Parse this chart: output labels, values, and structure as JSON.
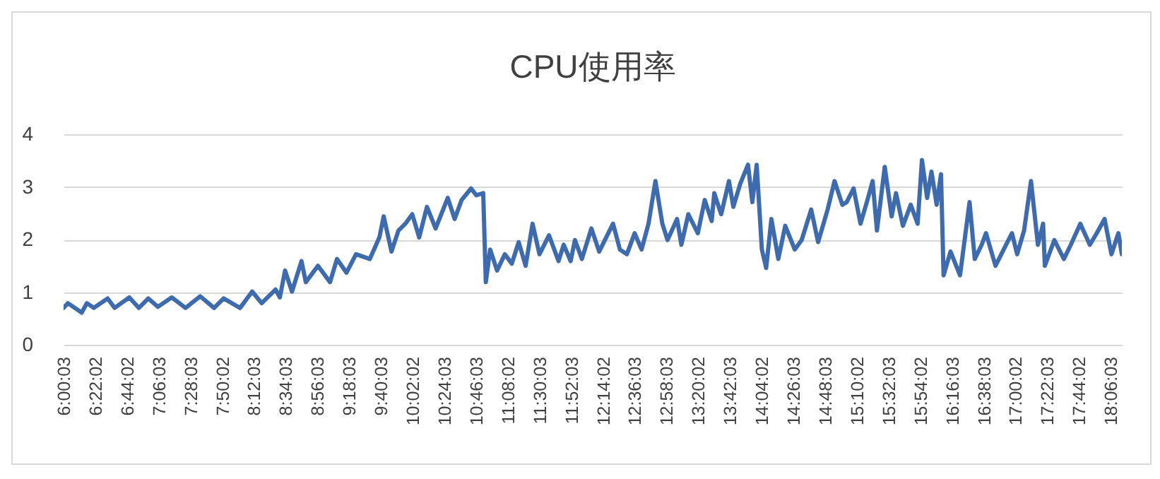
{
  "chart_data": {
    "type": "line",
    "title": "CPU使用率",
    "x": [
      6.0008,
      6.05,
      6.13,
      6.21,
      6.27,
      6.35,
      6.51,
      6.59,
      6.76,
      6.87,
      6.98,
      7.09,
      7.25,
      7.41,
      7.58,
      7.74,
      7.85,
      8.04,
      8.18,
      8.29,
      8.45,
      8.5,
      8.56,
      8.64,
      8.75,
      8.8,
      8.94,
      9.08,
      9.16,
      9.27,
      9.38,
      9.54,
      9.65,
      9.7,
      9.79,
      9.87,
      9.95,
      10.03,
      10.11,
      10.2,
      10.3,
      10.44,
      10.52,
      10.6,
      10.71,
      10.77,
      10.85,
      10.88,
      10.93,
      11.01,
      11.1,
      11.18,
      11.26,
      11.34,
      11.42,
      11.5,
      11.61,
      11.72,
      11.78,
      11.86,
      11.91,
      11.99,
      12.1,
      12.19,
      12.35,
      12.43,
      12.51,
      12.6,
      12.68,
      12.76,
      12.84,
      12.92,
      12.98,
      13.09,
      13.14,
      13.22,
      13.33,
      13.41,
      13.49,
      13.52,
      13.6,
      13.69,
      13.74,
      13.82,
      13.91,
      13.96,
      14.01,
      14.07,
      14.12,
      14.18,
      14.26,
      14.34,
      14.45,
      14.53,
      14.64,
      14.72,
      14.83,
      14.91,
      15.0,
      15.05,
      15.13,
      15.21,
      15.29,
      15.35,
      15.4,
      15.49,
      15.57,
      15.62,
      15.7,
      15.79,
      15.87,
      15.92,
      15.98,
      16.03,
      16.09,
      16.14,
      16.17,
      16.25,
      16.36,
      16.47,
      16.53,
      16.61,
      16.66,
      16.77,
      16.88,
      16.96,
      17.02,
      17.1,
      17.18,
      17.26,
      17.32,
      17.34,
      17.45,
      17.56,
      17.64,
      17.75,
      17.86,
      17.94,
      18.03,
      18.11,
      18.19,
      18.23
    ],
    "series": [
      {
        "color": "#3e6aae",
        "values": [
          0.7,
          0.79,
          0.7,
          0.61,
          0.79,
          0.7,
          0.88,
          0.7,
          0.9,
          0.7,
          0.88,
          0.72,
          0.9,
          0.7,
          0.92,
          0.7,
          0.88,
          0.7,
          1.01,
          0.79,
          1.05,
          0.9,
          1.41,
          1.01,
          1.59,
          1.19,
          1.5,
          1.19,
          1.63,
          1.37,
          1.72,
          1.63,
          2.04,
          2.44,
          1.77,
          2.17,
          2.3,
          2.48,
          2.04,
          2.62,
          2.21,
          2.79,
          2.39,
          2.75,
          2.97,
          2.84,
          2.88,
          1.19,
          1.81,
          1.41,
          1.72,
          1.54,
          1.95,
          1.5,
          2.3,
          1.72,
          2.08,
          1.59,
          1.9,
          1.59,
          1.99,
          1.63,
          2.21,
          1.77,
          2.3,
          1.81,
          1.72,
          2.12,
          1.81,
          2.3,
          3.11,
          2.3,
          1.99,
          2.39,
          1.9,
          2.48,
          2.12,
          2.75,
          2.35,
          2.88,
          2.48,
          3.11,
          2.62,
          3.06,
          3.42,
          2.71,
          3.42,
          1.81,
          1.46,
          2.39,
          1.63,
          2.26,
          1.81,
          1.99,
          2.57,
          1.95,
          2.57,
          3.11,
          2.66,
          2.71,
          2.97,
          2.3,
          2.75,
          3.11,
          2.17,
          3.38,
          2.44,
          2.88,
          2.26,
          2.66,
          2.3,
          3.51,
          2.79,
          3.29,
          2.66,
          3.24,
          1.32,
          1.77,
          1.32,
          2.71,
          1.63,
          1.9,
          2.12,
          1.5,
          1.86,
          2.12,
          1.72,
          2.17,
          3.11,
          1.9,
          2.3,
          1.5,
          1.99,
          1.63,
          1.9,
          2.3,
          1.9,
          2.12,
          2.39,
          1.72,
          2.12,
          1.72
        ]
      }
    ],
    "xlim": [
      6.0008,
      18.23
    ],
    "xticks": [
      {
        "value": 6.0008,
        "label": "6:00:03"
      },
      {
        "value": 6.3672,
        "label": "6:22:02"
      },
      {
        "value": 6.7339,
        "label": "6:44:02"
      },
      {
        "value": 7.1008,
        "label": "7:06:03"
      },
      {
        "value": 7.4675,
        "label": "7:28:03"
      },
      {
        "value": 7.8339,
        "label": "7:50:02"
      },
      {
        "value": 8.2008,
        "label": "8:12:03"
      },
      {
        "value": 8.5675,
        "label": "8:34:03"
      },
      {
        "value": 8.9342,
        "label": "8:56:03"
      },
      {
        "value": 9.3008,
        "label": "9:18:03"
      },
      {
        "value": 9.6675,
        "label": "9:40:03"
      },
      {
        "value": 10.0339,
        "label": "10:02:02"
      },
      {
        "value": 10.4008,
        "label": "10:24:03"
      },
      {
        "value": 10.7675,
        "label": "10:46:03"
      },
      {
        "value": 11.1339,
        "label": "11:08:02"
      },
      {
        "value": 11.5008,
        "label": "11:30:03"
      },
      {
        "value": 11.8675,
        "label": "11:52:03"
      },
      {
        "value": 12.2339,
        "label": "12:14:02"
      },
      {
        "value": 12.6008,
        "label": "12:36:03"
      },
      {
        "value": 12.9675,
        "label": "12:58:03"
      },
      {
        "value": 13.3339,
        "label": "13:20:02"
      },
      {
        "value": 13.7008,
        "label": "13:42:03"
      },
      {
        "value": 14.0672,
        "label": "14:04:02"
      },
      {
        "value": 14.4342,
        "label": "14:26:03"
      },
      {
        "value": 14.8008,
        "label": "14:48:03"
      },
      {
        "value": 15.1672,
        "label": "15:10:02"
      },
      {
        "value": 15.5342,
        "label": "15:32:03"
      },
      {
        "value": 15.9006,
        "label": "15:54:02"
      },
      {
        "value": 16.2675,
        "label": "16:16:03"
      },
      {
        "value": 16.6342,
        "label": "16:38:03"
      },
      {
        "value": 17.0006,
        "label": "17:00:02"
      },
      {
        "value": 17.3675,
        "label": "17:22:03"
      },
      {
        "value": 17.7339,
        "label": "17:44:02"
      },
      {
        "value": 18.1008,
        "label": "18:06:03"
      }
    ],
    "ylim": [
      0,
      4
    ],
    "yticks": [
      0,
      1,
      2,
      3,
      4
    ],
    "grid": "y",
    "marker": "none",
    "line_style": "solid"
  }
}
